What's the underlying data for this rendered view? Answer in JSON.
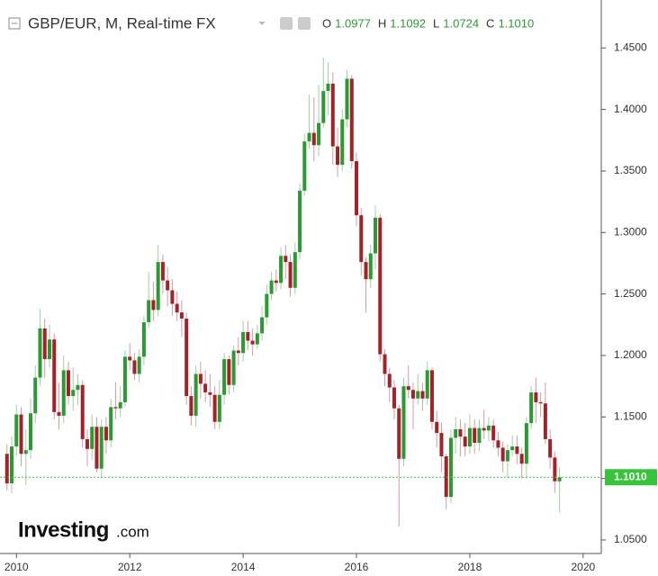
{
  "header": {
    "title": "GBP/EUR, M, Real-time FX",
    "ohlc": [
      {
        "key": "O",
        "value": "1.0977"
      },
      {
        "key": "H",
        "value": "1.1092"
      },
      {
        "key": "L",
        "value": "1.0724"
      },
      {
        "key": "C",
        "value": "1.1010"
      }
    ]
  },
  "logo": {
    "brand": "Investing",
    "suffix": ".com"
  },
  "chart_data": {
    "type": "candlestick",
    "x": [
      "2009-11",
      "2009-12",
      "2010-01",
      "2010-02",
      "2010-03",
      "2010-04",
      "2010-05",
      "2010-06",
      "2010-07",
      "2010-08",
      "2010-09",
      "2010-10",
      "2010-11",
      "2010-12",
      "2011-01",
      "2011-02",
      "2011-03",
      "2011-04",
      "2011-05",
      "2011-06",
      "2011-07",
      "2011-08",
      "2011-09",
      "2011-10",
      "2011-11",
      "2011-12",
      "2012-01",
      "2012-02",
      "2012-03",
      "2012-04",
      "2012-05",
      "2012-06",
      "2012-07",
      "2012-08",
      "2012-09",
      "2012-10",
      "2012-11",
      "2012-12",
      "2013-01",
      "2013-02",
      "2013-03",
      "2013-04",
      "2013-05",
      "2013-06",
      "2013-07",
      "2013-08",
      "2013-09",
      "2013-10",
      "2013-11",
      "2013-12",
      "2014-01",
      "2014-02",
      "2014-03",
      "2014-04",
      "2014-05",
      "2014-06",
      "2014-07",
      "2014-08",
      "2014-09",
      "2014-10",
      "2014-11",
      "2014-12",
      "2015-01",
      "2015-02",
      "2015-03",
      "2015-04",
      "2015-05",
      "2015-06",
      "2015-07",
      "2015-08",
      "2015-09",
      "2015-10",
      "2015-11",
      "2015-12",
      "2016-01",
      "2016-02",
      "2016-03",
      "2016-04",
      "2016-05",
      "2016-06",
      "2016-07",
      "2016-08",
      "2016-09",
      "2016-10",
      "2016-11",
      "2016-12",
      "2017-01",
      "2017-02",
      "2017-03",
      "2017-04",
      "2017-05",
      "2017-06",
      "2017-07",
      "2017-08",
      "2017-09",
      "2017-10",
      "2017-11",
      "2017-12",
      "2018-01",
      "2018-02",
      "2018-03",
      "2018-04",
      "2018-05",
      "2018-06",
      "2018-07",
      "2018-08",
      "2018-09",
      "2018-10",
      "2018-11",
      "2018-12",
      "2019-01",
      "2019-02",
      "2019-03",
      "2019-04",
      "2019-05",
      "2019-06",
      "2019-07",
      "2019-08"
    ],
    "open": [
      1.12,
      1.096,
      1.126,
      1.152,
      1.12,
      1.123,
      1.153,
      1.182,
      1.222,
      1.197,
      1.213,
      1.154,
      1.151,
      1.188,
      1.167,
      1.172,
      1.176,
      1.132,
      1.124,
      1.142,
      1.108,
      1.142,
      1.131,
      1.158,
      1.157,
      1.162,
      1.199,
      1.196,
      1.185,
      1.199,
      1.227,
      1.245,
      1.237,
      1.276,
      1.261,
      1.253,
      1.242,
      1.235,
      1.23,
      1.167,
      1.151,
      1.185,
      1.177,
      1.17,
      1.168,
      1.146,
      1.168,
      1.197,
      1.176,
      1.204,
      1.202,
      1.219,
      1.212,
      1.209,
      1.218,
      1.231,
      1.25,
      1.261,
      1.259,
      1.281,
      1.276,
      1.255,
      1.284,
      1.334,
      1.374,
      1.381,
      1.371,
      1.389,
      1.415,
      1.421,
      1.37,
      1.355,
      1.392,
      1.425,
      1.358,
      1.314,
      1.276,
      1.262,
      1.283,
      1.312,
      1.201,
      1.185,
      1.174,
      1.157,
      1.116,
      1.175,
      1.172,
      1.165,
      1.171,
      1.165,
      1.188,
      1.146,
      1.137,
      1.118,
      1.085,
      1.133,
      1.14,
      1.134,
      1.126,
      1.141,
      1.129,
      1.141,
      1.139,
      1.143,
      1.131,
      1.125,
      1.114,
      1.123,
      1.126,
      1.12,
      1.112,
      1.145,
      1.17,
      1.162,
      1.161,
      1.132,
      1.117,
      1.0977
    ],
    "high": [
      1.128,
      1.134,
      1.16,
      1.158,
      1.14,
      1.165,
      1.192,
      1.238,
      1.23,
      1.225,
      1.218,
      1.178,
      1.2,
      1.195,
      1.19,
      1.185,
      1.18,
      1.14,
      1.152,
      1.15,
      1.148,
      1.15,
      1.165,
      1.178,
      1.175,
      1.204,
      1.21,
      1.202,
      1.205,
      1.232,
      1.268,
      1.26,
      1.29,
      1.282,
      1.272,
      1.262,
      1.252,
      1.245,
      1.235,
      1.175,
      1.192,
      1.195,
      1.188,
      1.185,
      1.175,
      1.18,
      1.202,
      1.2,
      1.208,
      1.215,
      1.228,
      1.228,
      1.222,
      1.225,
      1.24,
      1.258,
      1.268,
      1.27,
      1.288,
      1.29,
      1.282,
      1.292,
      1.34,
      1.38,
      1.412,
      1.41,
      1.42,
      1.442,
      1.438,
      1.43,
      1.385,
      1.4,
      1.432,
      1.428,
      1.365,
      1.32,
      1.28,
      1.29,
      1.322,
      1.315,
      1.205,
      1.19,
      1.18,
      1.16,
      1.182,
      1.192,
      1.178,
      1.185,
      1.178,
      1.195,
      1.19,
      1.155,
      1.145,
      1.12,
      1.14,
      1.15,
      1.148,
      1.145,
      1.152,
      1.148,
      1.148,
      1.156,
      1.15,
      1.148,
      1.138,
      1.13,
      1.128,
      1.135,
      1.135,
      1.125,
      1.15,
      1.175,
      1.182,
      1.17,
      1.178,
      1.14,
      1.122,
      1.1092
    ],
    "low": [
      1.09,
      1.088,
      1.118,
      1.11,
      1.095,
      1.116,
      1.145,
      1.175,
      1.182,
      1.19,
      1.148,
      1.14,
      1.145,
      1.16,
      1.155,
      1.16,
      1.125,
      1.11,
      1.115,
      1.105,
      1.1,
      1.12,
      1.125,
      1.148,
      1.15,
      1.158,
      1.188,
      1.18,
      1.178,
      1.192,
      1.222,
      1.228,
      1.232,
      1.25,
      1.24,
      1.232,
      1.228,
      1.215,
      1.16,
      1.143,
      1.142,
      1.165,
      1.162,
      1.158,
      1.14,
      1.14,
      1.16,
      1.168,
      1.17,
      1.192,
      1.195,
      1.204,
      1.2,
      1.205,
      1.212,
      1.225,
      1.245,
      1.252,
      1.254,
      1.262,
      1.248,
      1.25,
      1.278,
      1.33,
      1.368,
      1.358,
      1.362,
      1.385,
      1.395,
      1.355,
      1.345,
      1.35,
      1.385,
      1.352,
      1.305,
      1.265,
      1.235,
      1.255,
      1.27,
      1.195,
      1.175,
      1.162,
      1.148,
      1.061,
      1.11,
      1.165,
      1.14,
      1.16,
      1.155,
      1.16,
      1.14,
      1.125,
      1.105,
      1.075,
      1.08,
      1.12,
      1.118,
      1.118,
      1.12,
      1.12,
      1.122,
      1.132,
      1.13,
      1.125,
      1.118,
      1.105,
      1.1,
      1.118,
      1.112,
      1.1,
      1.1,
      1.14,
      1.145,
      1.15,
      1.128,
      1.108,
      1.088,
      1.0724
    ],
    "close": [
      1.096,
      1.126,
      1.152,
      1.12,
      1.123,
      1.153,
      1.182,
      1.222,
      1.197,
      1.213,
      1.154,
      1.151,
      1.188,
      1.167,
      1.172,
      1.176,
      1.132,
      1.124,
      1.142,
      1.108,
      1.142,
      1.131,
      1.158,
      1.157,
      1.162,
      1.199,
      1.196,
      1.185,
      1.199,
      1.227,
      1.245,
      1.237,
      1.276,
      1.261,
      1.253,
      1.242,
      1.235,
      1.23,
      1.167,
      1.151,
      1.185,
      1.177,
      1.17,
      1.168,
      1.146,
      1.168,
      1.197,
      1.176,
      1.204,
      1.202,
      1.219,
      1.212,
      1.209,
      1.218,
      1.231,
      1.25,
      1.261,
      1.259,
      1.281,
      1.276,
      1.255,
      1.284,
      1.334,
      1.374,
      1.381,
      1.371,
      1.389,
      1.415,
      1.421,
      1.37,
      1.355,
      1.392,
      1.425,
      1.358,
      1.314,
      1.276,
      1.262,
      1.283,
      1.312,
      1.201,
      1.185,
      1.174,
      1.157,
      1.116,
      1.175,
      1.172,
      1.165,
      1.171,
      1.165,
      1.188,
      1.146,
      1.137,
      1.118,
      1.085,
      1.133,
      1.14,
      1.134,
      1.126,
      1.141,
      1.129,
      1.141,
      1.139,
      1.143,
      1.131,
      1.125,
      1.114,
      1.123,
      1.126,
      1.12,
      1.112,
      1.145,
      1.17,
      1.162,
      1.161,
      1.132,
      1.117,
      1.0977,
      1.101
    ],
    "up_color": "#2b9a33",
    "down_color": "#a3222a",
    "last_price_color": "#37c43a",
    "ylim": [
      1.039,
      1.489
    ],
    "yticks": [
      {
        "value": 1.05,
        "label": "1.0500"
      },
      {
        "value": 1.1,
        "label": "1.1000"
      },
      {
        "value": 1.15,
        "label": "1.1500"
      },
      {
        "value": 1.2,
        "label": "1.2000"
      },
      {
        "value": 1.25,
        "label": "1.2500"
      },
      {
        "value": 1.3,
        "label": "1.3000"
      },
      {
        "value": 1.35,
        "label": "1.3500"
      },
      {
        "value": 1.4,
        "label": "1.4000"
      },
      {
        "value": 1.45,
        "label": "1.4500"
      }
    ],
    "xlim": [
      2009.71,
      2020.32
    ],
    "xticks": [
      2010,
      2012,
      2014,
      2016,
      2018,
      2020
    ],
    "last_price": {
      "value": 1.101,
      "label": "1.1010"
    }
  }
}
